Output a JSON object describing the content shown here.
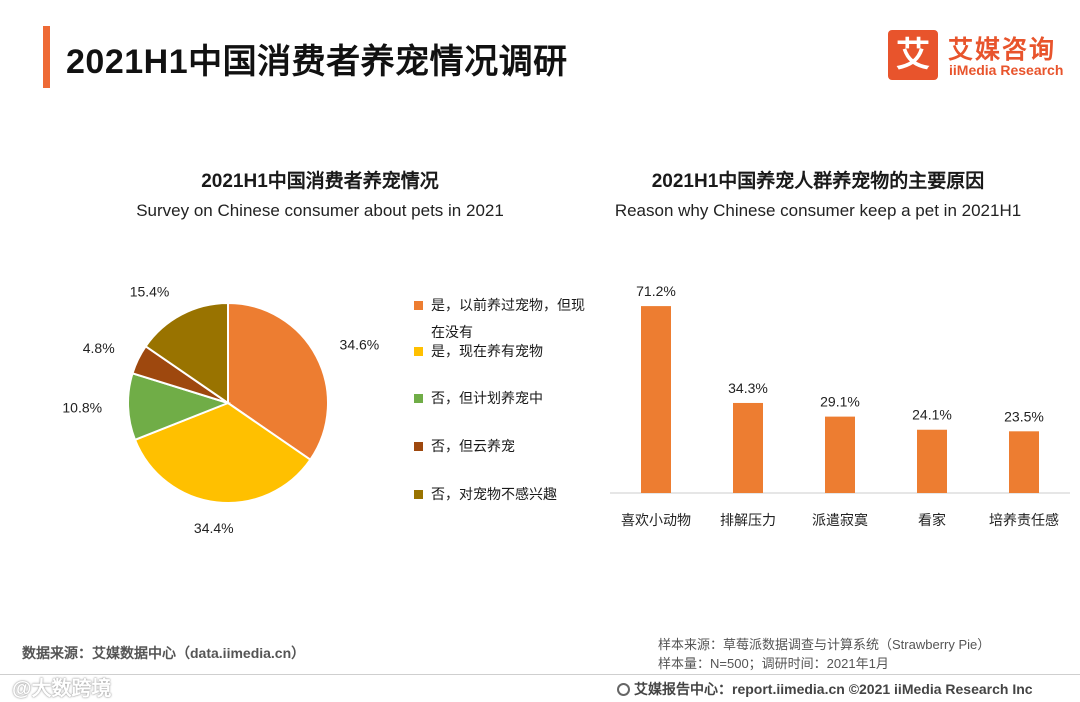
{
  "header": {
    "title": "2021H1中国消费者养宠情况调研",
    "logo_mark": "艾",
    "logo_cn": "艾媒咨询",
    "logo_en": "iiMedia Research",
    "accent_color": "#ee6a35"
  },
  "chart_data": [
    {
      "type": "pie",
      "title": "2021H1中国消费者养宠情况",
      "subtitle": "Survey on Chinese consumer about pets in 2021",
      "unit": "%",
      "slices": [
        {
          "label": "是，以前养过宠物，但现在没有",
          "value": 34.6,
          "display": "34.6%",
          "color": "#ed7d31"
        },
        {
          "label": "是，现在养有宠物",
          "value": 34.4,
          "display": "34.4%",
          "color": "#ffc000"
        },
        {
          "label": "否，但计划养宠中",
          "value": 10.8,
          "display": "10.8%",
          "color": "#70ad47"
        },
        {
          "label": "否，但云养宠",
          "value": 4.8,
          "display": "4.8%",
          "color": "#9e480e"
        },
        {
          "label": "否，对宠物不感兴趣",
          "value": 15.4,
          "display": "15.4%",
          "color": "#997300"
        }
      ],
      "legend_position": "right"
    },
    {
      "type": "bar",
      "title": "2021H1中国养宠人群养宠物的主要原因",
      "subtitle": "Reason why Chinese consumer keep a pet in 2021H1",
      "categories": [
        "喜欢小动物",
        "排解压力",
        "派遣寂寞",
        "看家",
        "培养责任感"
      ],
      "values": [
        71.2,
        34.3,
        29.1,
        24.1,
        23.5
      ],
      "value_labels": [
        "71.2%",
        "34.3%",
        "29.1%",
        "24.1%",
        "23.5%"
      ],
      "unit": "%",
      "ylim": [
        0,
        80
      ],
      "color": "#ed7d31",
      "grid": false
    }
  ],
  "footer": {
    "source": "数据来源：艾媒数据中心（data.iimedia.cn）",
    "sample_source": "样本来源：草莓派数据调查与计算系统（Strawberry Pie）",
    "sample_size": "样本量：N=500；调研时间：2021年1月",
    "report_center": "艾媒报告中心：report.iimedia.cn   ©2021  iiMedia Research  Inc",
    "watermark": "@大数跨境"
  }
}
